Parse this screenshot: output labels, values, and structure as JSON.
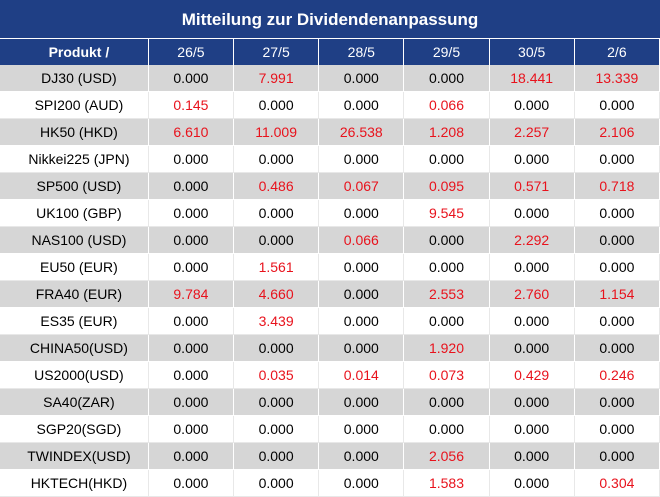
{
  "title": "Mitteilung zur Dividendenanpassung",
  "header": {
    "product": "Produkt /",
    "dates": [
      "26/5",
      "27/5",
      "28/5",
      "29/5",
      "30/5",
      "2/6"
    ]
  },
  "rows": [
    {
      "name": "DJ30 (USD)",
      "values": [
        "0.000",
        "7.991",
        "0.000",
        "0.000",
        "18.441",
        "13.339"
      ]
    },
    {
      "name": "SPI200 (AUD)",
      "values": [
        "0.145",
        "0.000",
        "0.000",
        "0.066",
        "0.000",
        "0.000"
      ]
    },
    {
      "name": "HK50 (HKD)",
      "values": [
        "6.610",
        "11.009",
        "26.538",
        "1.208",
        "2.257",
        "2.106"
      ]
    },
    {
      "name": "Nikkei225 (JPN)",
      "values": [
        "0.000",
        "0.000",
        "0.000",
        "0.000",
        "0.000",
        "0.000"
      ]
    },
    {
      "name": "SP500 (USD)",
      "values": [
        "0.000",
        "0.486",
        "0.067",
        "0.095",
        "0.571",
        "0.718"
      ]
    },
    {
      "name": "UK100 (GBP)",
      "values": [
        "0.000",
        "0.000",
        "0.000",
        "9.545",
        "0.000",
        "0.000"
      ]
    },
    {
      "name": "NAS100 (USD)",
      "values": [
        "0.000",
        "0.000",
        "0.066",
        "0.000",
        "2.292",
        "0.000"
      ]
    },
    {
      "name": "EU50 (EUR)",
      "values": [
        "0.000",
        "1.561",
        "0.000",
        "0.000",
        "0.000",
        "0.000"
      ]
    },
    {
      "name": "FRA40 (EUR)",
      "values": [
        "9.784",
        "4.660",
        "0.000",
        "2.553",
        "2.760",
        "1.154"
      ]
    },
    {
      "name": "ES35 (EUR)",
      "values": [
        "0.000",
        "3.439",
        "0.000",
        "0.000",
        "0.000",
        "0.000"
      ]
    },
    {
      "name": "CHINA50(USD)",
      "values": [
        "0.000",
        "0.000",
        "0.000",
        "1.920",
        "0.000",
        "0.000"
      ]
    },
    {
      "name": "US2000(USD)",
      "values": [
        "0.000",
        "0.035",
        "0.014",
        "0.073",
        "0.429",
        "0.246"
      ]
    },
    {
      "name": "SA40(ZAR)",
      "values": [
        "0.000",
        "0.000",
        "0.000",
        "0.000",
        "0.000",
        "0.000"
      ]
    },
    {
      "name": "SGP20(SGD)",
      "values": [
        "0.000",
        "0.000",
        "0.000",
        "0.000",
        "0.000",
        "0.000"
      ]
    },
    {
      "name": "TWINDEX(USD)",
      "values": [
        "0.000",
        "0.000",
        "0.000",
        "2.056",
        "0.000",
        "0.000"
      ]
    },
    {
      "name": "HKTECH(HKD)",
      "values": [
        "0.000",
        "0.000",
        "0.000",
        "1.583",
        "0.000",
        "0.304"
      ]
    }
  ],
  "colors": {
    "header_bg": "#1f3f85",
    "row_alt_bg": "#d6d6d6",
    "highlight_text": "#e8121c"
  }
}
